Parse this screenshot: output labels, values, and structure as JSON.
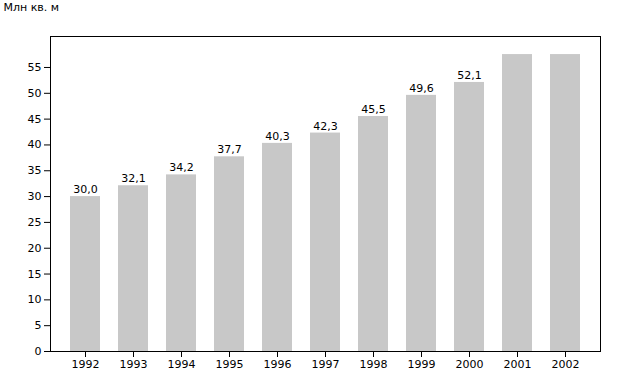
{
  "chart_data": {
    "type": "bar",
    "categories": [
      "1992",
      "1993",
      "1994",
      "1995",
      "1996",
      "1997",
      "1998",
      "1999",
      "2000",
      "2001",
      "2002"
    ],
    "values": [
      30.0,
      32.1,
      34.2,
      37.7,
      40.3,
      42.3,
      45.5,
      49.6,
      52.1,
      57.5,
      57.5
    ],
    "value_labels": [
      "30,0",
      "32,1",
      "34,2",
      "37,7",
      "40,3",
      "42,3",
      "45,5",
      "49,6",
      "52,1",
      null,
      null
    ],
    "data_labels": true,
    "color": "#c8c8c8",
    "ylabel": "Млн кв. м",
    "ylim": [
      0,
      61
    ],
    "yticks": [
      0,
      5,
      10,
      15,
      20,
      25,
      30,
      35,
      40,
      45,
      50,
      55
    ],
    "grid": false
  }
}
